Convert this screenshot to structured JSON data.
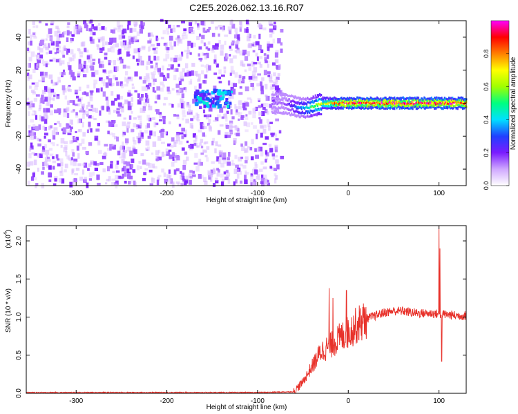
{
  "title": "C2E5.2026.062.13.16.R07",
  "colors": {
    "snr_line": "#e8322b",
    "background": "#ffffff",
    "axis": "#000000"
  },
  "chart_data": [
    {
      "type": "heatmap",
      "xlabel": "Height of straight line (km)",
      "ylabel": "Frequency (Hz)",
      "xlim": [
        -355,
        130
      ],
      "ylim": [
        -50,
        50
      ],
      "xticks": [
        -300,
        -200,
        -100,
        0,
        100
      ],
      "yticks": [
        -40,
        -20,
        0,
        20,
        40
      ],
      "colorbar": {
        "label": "Normalized spectral amplitude",
        "range": [
          0,
          1
        ],
        "ticks": [
          "0.0",
          "0.2",
          "0.4",
          "0.6",
          "0.8"
        ],
        "colormap": [
          "#ffffff",
          "#cfa8ff",
          "#7a1cff",
          "#2040ff",
          "#00e0ff",
          "#00ff80",
          "#a0ff00",
          "#ffff00",
          "#ff8000",
          "#ff0000",
          "#ff00ff"
        ]
      },
      "regions": [
        {
          "name": "noise",
          "x_range": [
            -355,
            -75
          ],
          "freq_range": [
            -50,
            50
          ],
          "amplitude": 0.1
        },
        {
          "name": "signal",
          "x_range": [
            -85,
            130
          ],
          "freq_center": 0,
          "freq_halfwidth": 3,
          "amplitude_peak": 1.0
        },
        {
          "name": "early_cluster",
          "x_range": [
            -170,
            -130
          ],
          "freq_center": 3,
          "amplitude": 0.3
        }
      ]
    },
    {
      "type": "line",
      "xlabel": "Height of straight line (km)",
      "ylabel": "SNR (10 * v/v)",
      "y_multiplier_label": "(x10",
      "y_multiplier_exp": "4",
      "xlim": [
        -355,
        130
      ],
      "ylim": [
        0,
        2.2
      ],
      "xticks": [
        -300,
        -200,
        -100,
        0,
        100
      ],
      "yticks": [
        "0.0",
        "0.5",
        "1.0",
        "1.5",
        "2.0"
      ],
      "series": [
        {
          "points": [
            [
              -355,
              0.01
            ],
            [
              -300,
              0.01
            ],
            [
              -200,
              0.01
            ],
            [
              -100,
              0.01
            ],
            [
              -60,
              0.02
            ],
            [
              -50,
              0.15
            ],
            [
              -40,
              0.35
            ],
            [
              -30,
              0.55
            ],
            [
              -20,
              0.62
            ],
            [
              -10,
              0.72
            ],
            [
              0,
              0.8
            ],
            [
              10,
              0.9
            ],
            [
              20,
              0.98
            ],
            [
              30,
              1.02
            ],
            [
              40,
              1.06
            ],
            [
              50,
              1.08
            ],
            [
              60,
              1.08
            ],
            [
              70,
              1.06
            ],
            [
              80,
              1.05
            ],
            [
              90,
              1.05
            ],
            [
              100,
              1.04
            ],
            [
              110,
              1.03
            ],
            [
              120,
              1.02
            ],
            [
              130,
              1.02
            ]
          ],
          "spikes": [
            [
              -21,
              1.38
            ],
            [
              -17,
              1.25
            ],
            [
              -2,
              1.35
            ],
            [
              100,
              2.2
            ],
            [
              101,
              1.9
            ],
            [
              103,
              0.42
            ]
          ]
        }
      ]
    }
  ]
}
